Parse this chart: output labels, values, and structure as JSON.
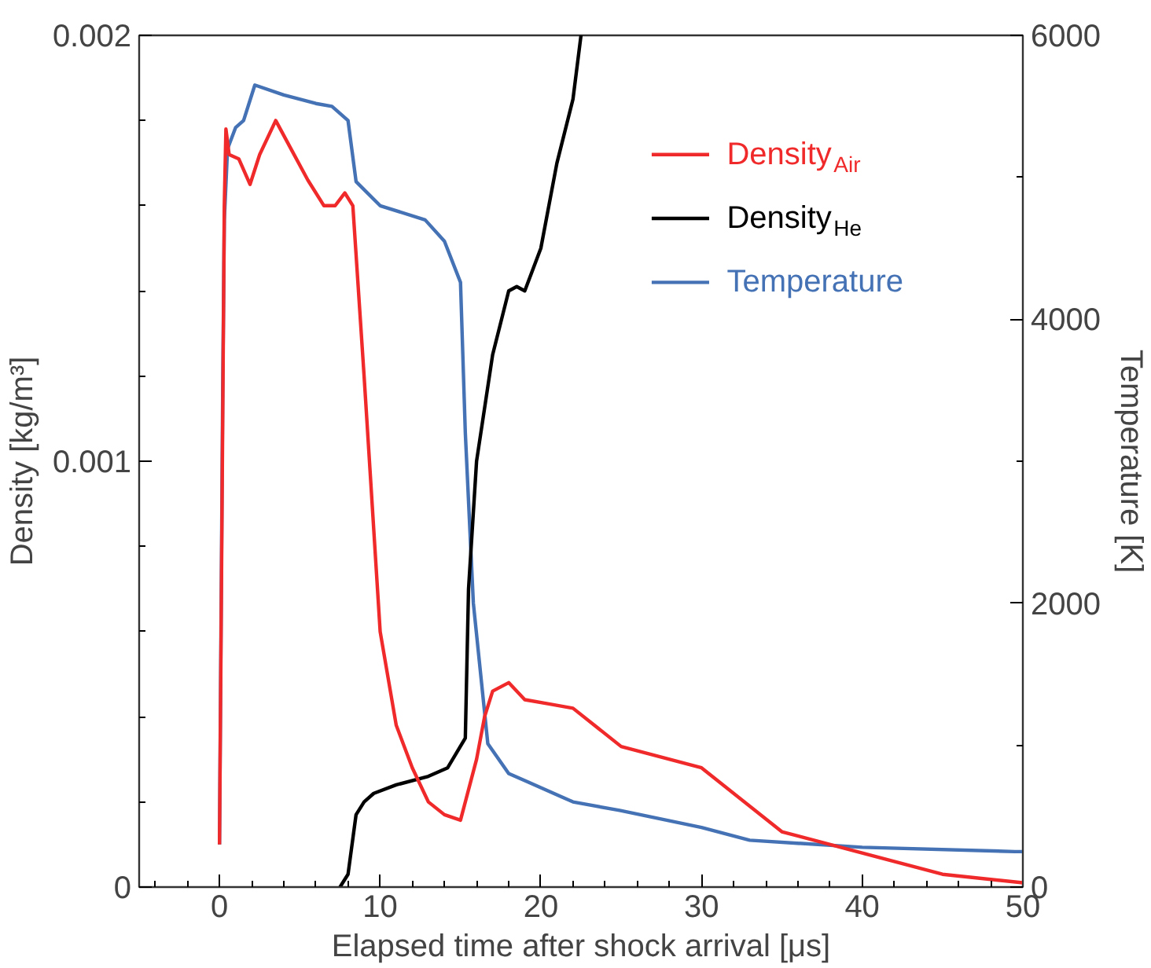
{
  "chart_data": {
    "type": "line",
    "xlabel": "Elapsed time after shock arrival [μs]",
    "ylabel": "Density [kg/m³]",
    "y2label": "Temperature [K]",
    "xlim": [
      -5,
      50
    ],
    "xticks": [
      0,
      10,
      20,
      30,
      40,
      50,
      {
        "value": -4,
        "label": null
      },
      {
        "value": -2,
        "label": null
      },
      {
        "value": 2,
        "label": null
      },
      {
        "value": 4,
        "label": null
      },
      {
        "value": 6,
        "label": null
      },
      {
        "value": 8,
        "label": null
      },
      {
        "value": 12,
        "label": null
      },
      {
        "value": 14,
        "label": null
      },
      {
        "value": 16,
        "label": null
      },
      {
        "value": 18,
        "label": null
      },
      {
        "value": 22,
        "label": null
      },
      {
        "value": 24,
        "label": null
      },
      {
        "value": 26,
        "label": null
      },
      {
        "value": 28,
        "label": null
      },
      {
        "value": 32,
        "label": null
      },
      {
        "value": 34,
        "label": null
      },
      {
        "value": 36,
        "label": null
      },
      {
        "value": 38,
        "label": null
      },
      {
        "value": 42,
        "label": null
      },
      {
        "value": 44,
        "label": null
      },
      {
        "value": 46,
        "label": null
      },
      {
        "value": 48,
        "label": null
      }
    ],
    "ylim": [
      0,
      0.002
    ],
    "yticks": [
      0,
      0.001,
      0.002,
      {
        "value": 0.0002,
        "label": null
      },
      {
        "value": 0.0004,
        "label": null
      },
      {
        "value": 0.0006,
        "label": null
      },
      {
        "value": 0.0008,
        "label": null
      },
      {
        "value": 0.0012,
        "label": null
      },
      {
        "value": 0.0014,
        "label": null
      },
      {
        "value": 0.0016,
        "label": null
      },
      {
        "value": 0.0018,
        "label": null
      }
    ],
    "y2lim": [
      0,
      6000
    ],
    "y2ticks": [
      0,
      2000,
      4000,
      6000,
      {
        "value": 1000,
        "label": null
      },
      {
        "value": 3000,
        "label": null
      },
      {
        "value": 5000,
        "label": null
      }
    ],
    "legend": "top right",
    "grid": false,
    "series": [
      {
        "name": "Density$_{Air}$",
        "color": "#f02a2a",
        "x": [
          0,
          0.3,
          0.4,
          0.6,
          1.2,
          1.9,
          2.5,
          3.5,
          4.5,
          5.5,
          6.5,
          7.2,
          7.8,
          8.3,
          9,
          10,
          11,
          12,
          13,
          14,
          15,
          16,
          16.5,
          17,
          18,
          19,
          20.5,
          22,
          25,
          30,
          35,
          40,
          45,
          50
        ],
        "values": [
          0.0001,
          0.0016,
          0.00178,
          0.00172,
          0.00171,
          0.00165,
          0.00172,
          0.0018,
          0.00173,
          0.00166,
          0.0016,
          0.0016,
          0.00163,
          0.0016,
          0.0012,
          0.0006,
          0.00038,
          0.00028,
          0.0002,
          0.00017,
          0.000157,
          0.0003,
          0.0004,
          0.00046,
          0.00048,
          0.00044,
          0.00043,
          0.00042,
          0.00033,
          0.00028,
          0.00013,
          8e-05,
          3e-05,
          1e-05
        ]
      },
      {
        "name": "Density$_{He}$",
        "color": "#000000",
        "x": [
          7.5,
          8,
          8.5,
          9,
          9.6,
          11,
          13,
          14.2,
          15.3,
          15.5,
          16,
          17,
          18,
          18.5,
          19,
          20,
          21,
          22,
          22.5
        ],
        "values": [
          0,
          3e-05,
          0.00017,
          0.0002,
          0.00022,
          0.00024,
          0.00026,
          0.00028,
          0.00035,
          0.0007,
          0.001,
          0.00125,
          0.0014,
          0.00141,
          0.0014,
          0.0015,
          0.0017,
          0.00185,
          0.002
        ]
      },
      {
        "name": "Temperature",
        "color": "#4472b4",
        "axis": "y2",
        "x": [
          0,
          0.2,
          0.3,
          0.5,
          1,
          1.5,
          2.2,
          4,
          6,
          7,
          8,
          8.5,
          10,
          12.8,
          14,
          15,
          15.3,
          15.8,
          16.7,
          18,
          19.2,
          22,
          24.9,
          30,
          33,
          40,
          49.5,
          50
        ],
        "values": [
          300,
          3500,
          4700,
          5200,
          5350,
          5400,
          5650,
          5580,
          5520,
          5500,
          5400,
          4970,
          4800,
          4700,
          4550,
          4260,
          3200,
          2000,
          1010,
          800,
          740,
          600,
          540,
          420,
          330,
          280,
          250,
          250
        ]
      }
    ]
  }
}
